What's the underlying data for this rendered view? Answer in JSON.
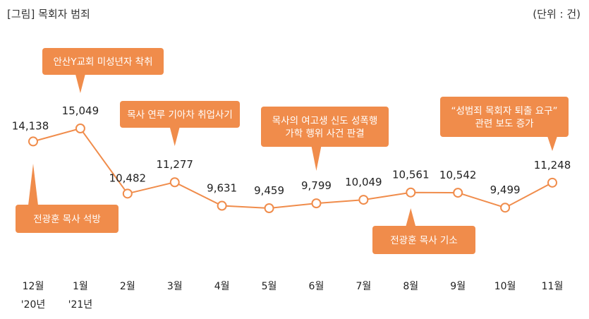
{
  "header": {
    "title": "[그림] 목회자 범죄",
    "unit": "(단위 : 건)"
  },
  "colors": {
    "line": "#F08C4B",
    "callout": "#F08C4B",
    "callout_text": "#FFFFFF",
    "marker_fill": "#FFFFFF"
  },
  "chart_data": {
    "type": "line",
    "title": "[그림] 목회자 범죄",
    "unit": "(단위 : 건)",
    "categories": [
      "12월",
      "1월",
      "2월",
      "3월",
      "4월",
      "5월",
      "6월",
      "7월",
      "8월",
      "9월",
      "10월",
      "11월"
    ],
    "category_sublabels": [
      "'20년",
      "'21년",
      "",
      "",
      "",
      "",
      "",
      "",
      "",
      "",
      "",
      ""
    ],
    "values": [
      14138,
      15049,
      10482,
      11277,
      9631,
      9459,
      9799,
      10049,
      10561,
      10542,
      9499,
      11248
    ],
    "value_labels": [
      "14,138",
      "15,049",
      "10,482",
      "11,277",
      "9,631",
      "9,459",
      "9,799",
      "10,049",
      "10,561",
      "10,542",
      "9,499",
      "11,248"
    ],
    "ylim": [
      8500,
      16000
    ],
    "grid": false,
    "annotations": [
      {
        "index": 0,
        "lines": [
          "전광훈 목사 석방"
        ],
        "placement": "below"
      },
      {
        "index": 1,
        "lines": [
          "안산Y교회 미성년자 착취"
        ],
        "placement": "above"
      },
      {
        "index": 3,
        "lines": [
          "목사 연루 기아차 취업사기"
        ],
        "placement": "above"
      },
      {
        "index": 6,
        "lines": [
          "목사의 여고생 신도 성폭행",
          "가학 행위 사건 판결"
        ],
        "placement": "above"
      },
      {
        "index": 8,
        "lines": [
          "전광훈 목사 기소"
        ],
        "placement": "below"
      },
      {
        "index": 11,
        "lines": [
          "“성범죄 목회자 퇴출 요구”",
          "관련 보도 증가"
        ],
        "placement": "above"
      }
    ]
  }
}
